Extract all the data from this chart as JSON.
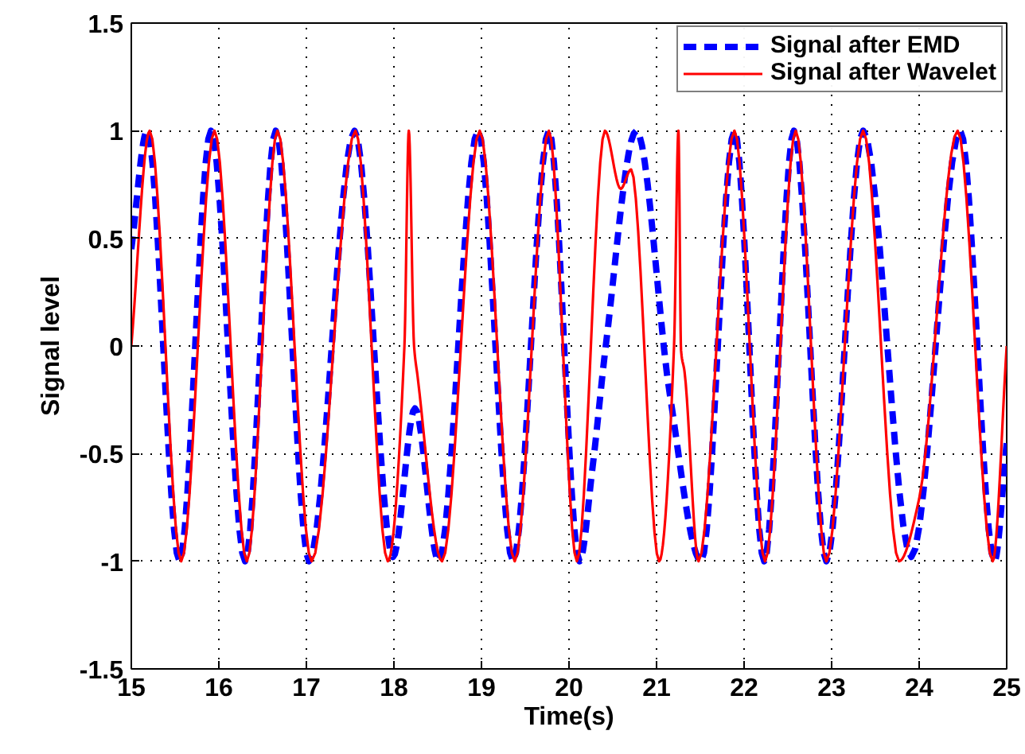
{
  "chart_data": {
    "type": "line",
    "xlabel": "Time(s)",
    "ylabel": "Signal level",
    "xlim": [
      15,
      25
    ],
    "ylim": [
      -1.5,
      1.5
    ],
    "xticks": [
      15,
      16,
      17,
      18,
      19,
      20,
      21,
      22,
      23,
      24,
      25
    ],
    "yticks": [
      -1.5,
      -1,
      -0.5,
      0,
      0.5,
      1,
      1.5
    ],
    "grid": true,
    "legend": "top right",
    "series": [
      {
        "name": "Signal after EMD",
        "color": "#0000ff",
        "line_style": "dashed",
        "x": [
          15,
          15.18,
          15.55,
          15.91,
          16.3,
          16.65,
          17.03,
          17.55,
          17.99,
          18.24,
          18.51,
          18.96,
          19.36,
          19.77,
          20.12,
          20.27,
          20.42,
          20.77,
          21.15,
          21.51,
          21.89,
          22.23,
          22.57,
          22.94,
          23.36,
          23.91,
          24.47,
          24.86,
          25
        ],
        "values": [
          0.45,
          1,
          -1,
          1,
          -1,
          1,
          -1,
          1,
          -0.98,
          -0.29,
          -1,
          1,
          -1,
          1,
          -1,
          -0.56,
          0,
          1,
          -0.22,
          -1,
          1,
          -1,
          1,
          -1,
          1,
          -0.98,
          1,
          -1,
          -0.45
        ]
      },
      {
        "name": "Signal after Wavelet",
        "color": "#ff0000",
        "line_style": "solid",
        "x": [
          15,
          15.21,
          15.57,
          15.95,
          16.32,
          16.67,
          17.06,
          17.56,
          17.93,
          18.12,
          18.17,
          18.23,
          18.27,
          18.55,
          18.98,
          19.38,
          19.77,
          20.09,
          20.41,
          20.59,
          20.71,
          21.03,
          21.2,
          21.25,
          21.28,
          21.32,
          21.48,
          21.89,
          22.24,
          22.59,
          22.94,
          23.36,
          23.77,
          24.0,
          24.44,
          24.84,
          25
        ],
        "values": [
          0,
          1,
          -1,
          1,
          -1,
          1,
          -1,
          1,
          -1,
          0,
          1,
          0,
          -0.14,
          -1,
          1,
          -1,
          1,
          -1,
          1,
          0.73,
          0.82,
          -1,
          0,
          1,
          -0.02,
          -0.12,
          -1,
          1,
          -1,
          1,
          -1,
          1,
          -1,
          -0.71,
          1,
          -1,
          0
        ]
      }
    ]
  }
}
